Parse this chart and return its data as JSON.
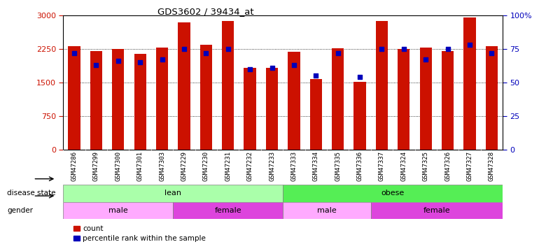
{
  "title": "GDS3602 / 39434_at",
  "samples": [
    "GSM47286",
    "GSM47299",
    "GSM47300",
    "GSM47301",
    "GSM47303",
    "GSM47229",
    "GSM47230",
    "GSM47231",
    "GSM47232",
    "GSM47233",
    "GSM47333",
    "GSM47334",
    "GSM47335",
    "GSM47336",
    "GSM47337",
    "GSM47324",
    "GSM47325",
    "GSM47326",
    "GSM47327",
    "GSM47328"
  ],
  "counts": [
    2310,
    2200,
    2250,
    2140,
    2290,
    2850,
    2340,
    2880,
    1820,
    1820,
    2190,
    1580,
    2270,
    1510,
    2880,
    2250,
    2290,
    2200,
    2960,
    2310
  ],
  "percentile": [
    72,
    63,
    66,
    65,
    67,
    75,
    72,
    75,
    60,
    61,
    63,
    55,
    72,
    54,
    75,
    75,
    67,
    75,
    78,
    72
  ],
  "disease_state_groups": [
    {
      "label": "lean",
      "start": 0,
      "end": 9,
      "color": "#aaffaa"
    },
    {
      "label": "obese",
      "start": 10,
      "end": 19,
      "color": "#55ee55"
    }
  ],
  "gender_groups": [
    {
      "label": "male",
      "start": 0,
      "end": 4,
      "color": "#ffaaff"
    },
    {
      "label": "female",
      "start": 5,
      "end": 9,
      "color": "#dd44dd"
    },
    {
      "label": "male",
      "start": 10,
      "end": 13,
      "color": "#ffaaff"
    },
    {
      "label": "female",
      "start": 14,
      "end": 19,
      "color": "#dd44dd"
    }
  ],
  "bar_color": "#cc1100",
  "percentile_color": "#0000bb",
  "left_ylim": [
    0,
    3000
  ],
  "right_ylim": [
    0,
    100
  ],
  "left_yticks": [
    0,
    750,
    1500,
    2250,
    3000
  ],
  "right_yticks": [
    0,
    25,
    50,
    75,
    100
  ],
  "grid_values": [
    750,
    1500,
    2250
  ],
  "disease_state_label": "disease state",
  "gender_label": "gender",
  "legend_items": [
    {
      "label": "count",
      "color": "#cc1100"
    },
    {
      "label": "percentile rank within the sample",
      "color": "#0000bb"
    }
  ],
  "xtick_bg_color": "#cccccc",
  "plot_bg_color": "#ffffff",
  "fig_bg_color": "#ffffff"
}
